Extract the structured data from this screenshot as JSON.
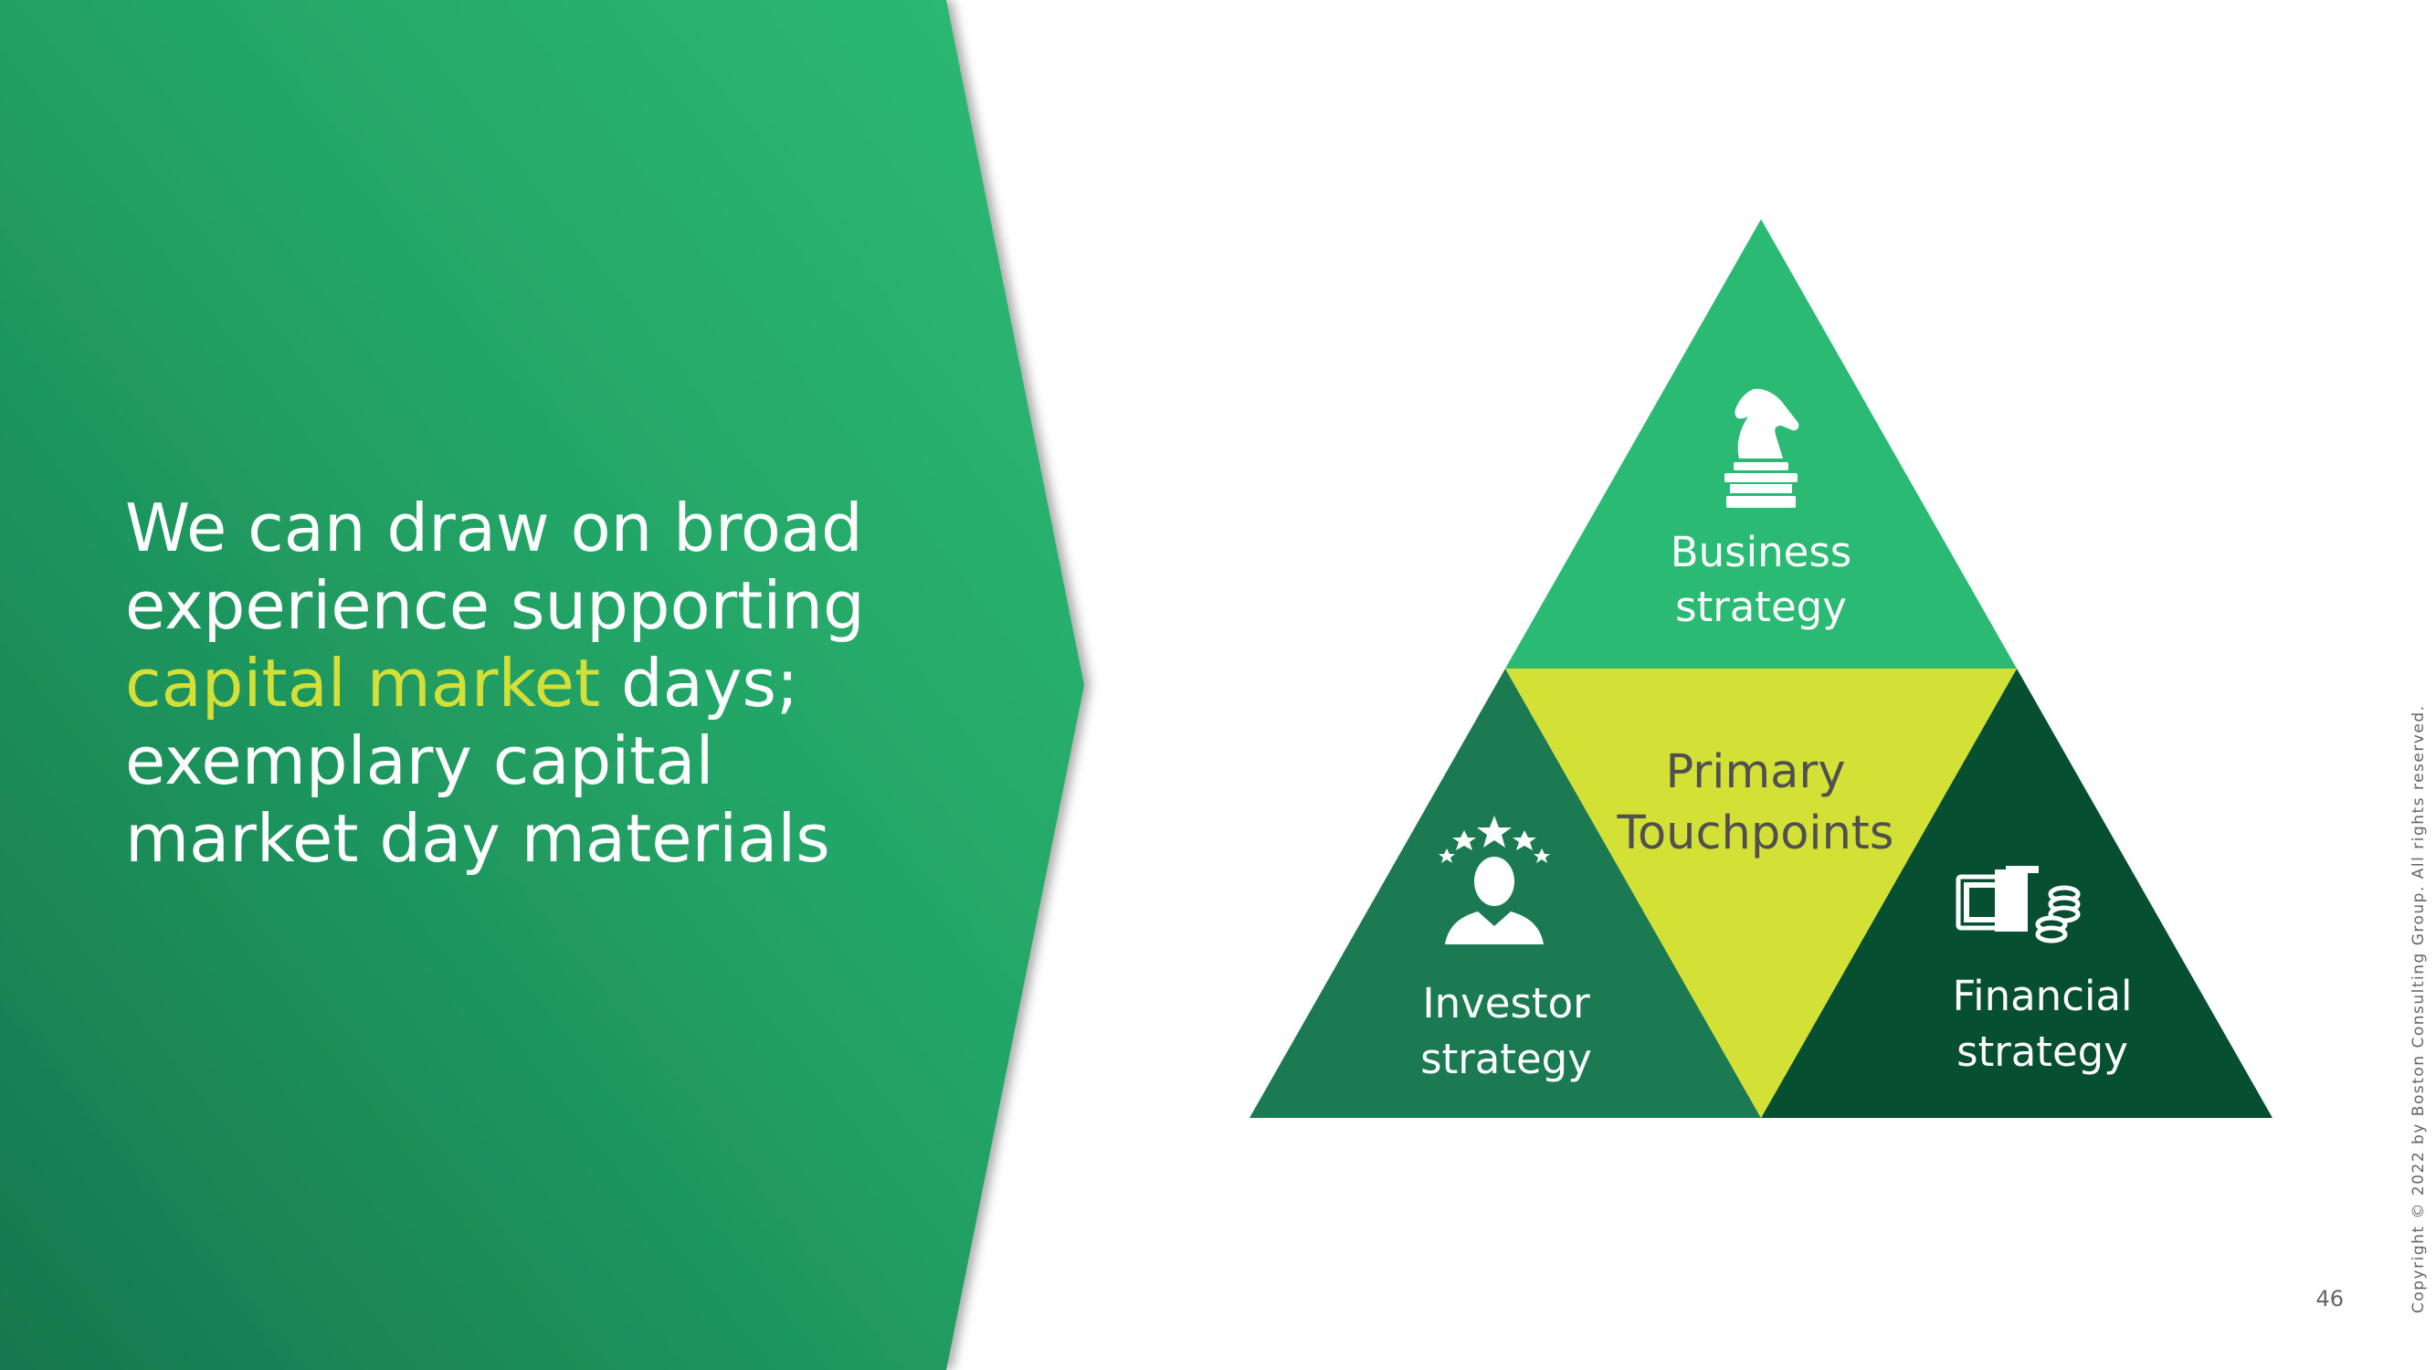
{
  "headline": {
    "text_before": "We can draw on broad experience supporting ",
    "highlight": "capital market",
    "text_after": " days; exemplary capital market day materials"
  },
  "pyramid": {
    "top": {
      "line1": "Business",
      "line2": "strategy",
      "icon": "chess-knight-icon"
    },
    "center": {
      "line1": "Primary",
      "line2": "Touchpoints"
    },
    "left": {
      "line1": "Investor",
      "line2": "strategy",
      "icon": "investor-person-stars-icon"
    },
    "right": {
      "line1": "Financial",
      "line2": "strategy",
      "icon": "money-coins-icon"
    }
  },
  "footer": {
    "page_number": "46",
    "copyright": "Copyright © 2022 by Boston Consulting Group. All rights reserved."
  },
  "colors": {
    "panel_gradient_start": "#1a8356",
    "panel_gradient_end": "#2bba74",
    "highlight": "#d4e037",
    "top_triangle": "#2bba74",
    "center_triangle": "#d3e036",
    "left_triangle": "#1b7a52",
    "right_triangle": "#064f30"
  }
}
